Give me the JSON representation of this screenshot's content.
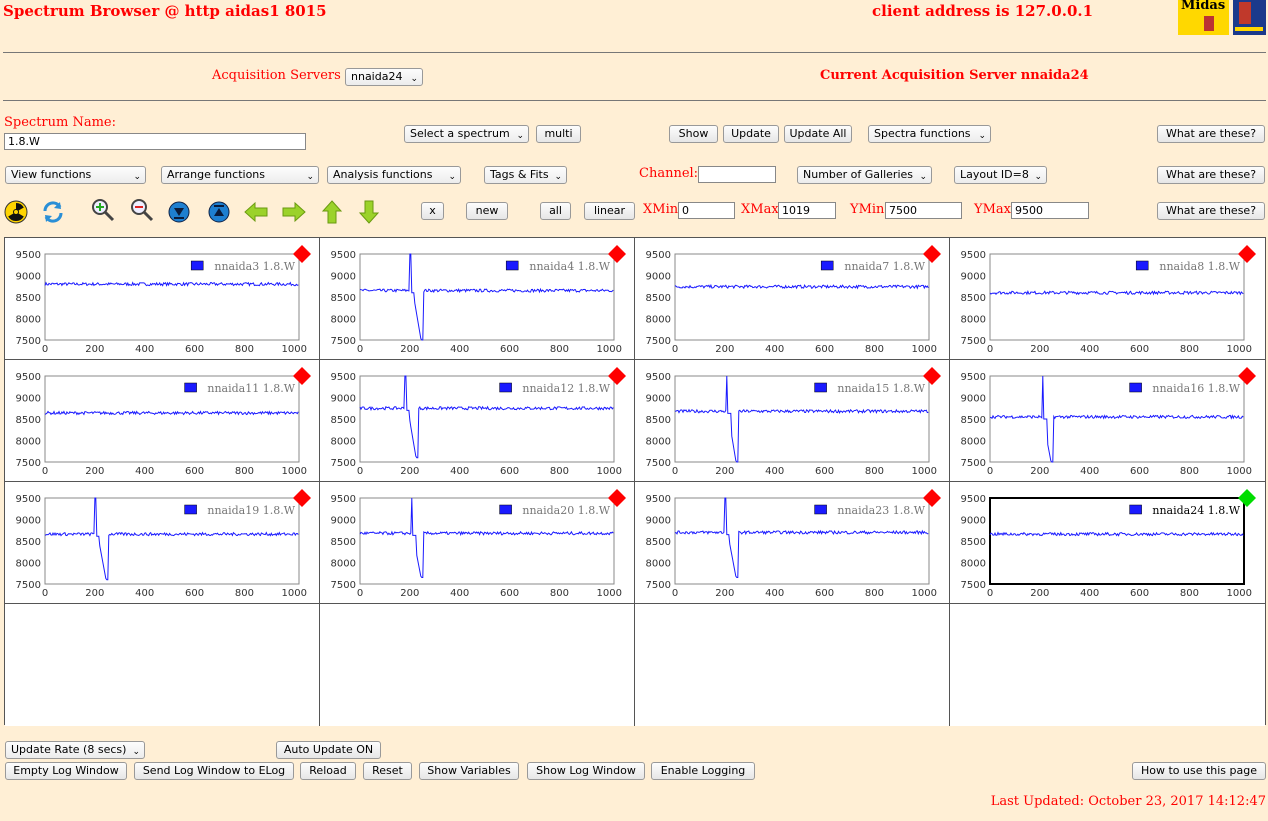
{
  "header": {
    "title": "Spectrum Browser @ http aidas1 8015",
    "client_address": "client address is 127.0.0.1",
    "logo_text": "Midas"
  },
  "servers": {
    "label": "Acquisition Servers",
    "selected": "nnaida24",
    "current": "Current Acquisition Server nnaida24"
  },
  "toolbar1": {
    "spectrum_name_label": "Spectrum Name:",
    "spectrum_name_value": "1.8.W",
    "select_spectrum": "Select a spectrum",
    "multi": "multi",
    "show": "Show",
    "update": "Update",
    "update_all": "Update All",
    "spectra_functions": "Spectra functions",
    "what": "What are these?"
  },
  "toolbar2": {
    "view_functions": "View functions",
    "arrange_functions": "Arrange functions",
    "analysis_functions": "Analysis functions",
    "tags_fits": "Tags & Fits",
    "channel_label": "Channel:",
    "channel_value": "",
    "galleries": "Number of Galleries",
    "layout": "Layout ID=8",
    "what": "What are these?"
  },
  "toolbar3": {
    "x": "x",
    "new": "new",
    "all": "all",
    "linear": "linear",
    "xmin_label": "XMin",
    "xmin_value": "0",
    "xmax_label": "XMax",
    "xmax_value": "1019",
    "ymin_label": "YMin",
    "ymin_value": "7500",
    "ymax_label": "YMax",
    "ymax_value": "9500",
    "what": "What are these?",
    "icons": [
      "radiation-icon",
      "refresh-icon",
      "zoom-in-icon",
      "zoom-out-icon",
      "expand-down-icon",
      "expand-up-icon",
      "arrow-left-icon",
      "arrow-right-icon",
      "arrow-up-icon",
      "arrow-down-icon"
    ]
  },
  "bottom": {
    "update_rate": "Update Rate (8 secs)",
    "auto_update": "Auto Update ON",
    "empty_log": "Empty Log Window",
    "send_log": "Send Log Window to ELog",
    "reload": "Reload",
    "reset": "Reset",
    "show_variables": "Show Variables",
    "show_log": "Show Log Window",
    "enable_logging": "Enable Logging",
    "how_to": "How to use this page",
    "last_updated": "Last Updated: October 23, 2017 14:12:47"
  },
  "colors": {
    "accent": "#ff0000",
    "series": "#1a1aff",
    "marker_inactive": "#ff0000",
    "marker_active": "#00dd00",
    "background": "#ffefd5"
  },
  "chart_data": [
    {
      "type": "line",
      "series": [
        {
          "name": "nnaida3 1.8.W",
          "baseline": 8800
        }
      ],
      "xlim": [
        0,
        1019
      ],
      "ylim": [
        7500,
        9500
      ],
      "x_ticks": [
        0,
        200,
        400,
        600,
        800,
        1000
      ],
      "y_ticks": [
        9500,
        9000,
        8500,
        8000,
        7500
      ],
      "active": false
    },
    {
      "type": "line",
      "series": [
        {
          "name": "nnaida4 1.8.W",
          "baseline": 8650,
          "spike_at": 200,
          "dip_to": 7500,
          "dip_at": 245
        }
      ],
      "xlim": [
        0,
        1019
      ],
      "ylim": [
        7500,
        9500
      ],
      "x_ticks": [
        0,
        200,
        400,
        600,
        800,
        1000
      ],
      "y_ticks": [
        9500,
        9000,
        8500,
        8000,
        7500
      ],
      "active": false
    },
    {
      "type": "line",
      "series": [
        {
          "name": "nnaida7 1.8.W",
          "baseline": 8740
        }
      ],
      "xlim": [
        0,
        1019
      ],
      "ylim": [
        7500,
        9500
      ],
      "x_ticks": [
        0,
        200,
        400,
        600,
        800,
        1000
      ],
      "y_ticks": [
        9500,
        9000,
        8500,
        8000,
        7500
      ],
      "active": false
    },
    {
      "type": "line",
      "series": [
        {
          "name": "nnaida8 1.8.W",
          "baseline": 8600
        }
      ],
      "xlim": [
        0,
        1019
      ],
      "ylim": [
        7500,
        9500
      ],
      "x_ticks": [
        0,
        200,
        400,
        600,
        800,
        1000
      ],
      "y_ticks": [
        9500,
        9000,
        8500,
        8000,
        7500
      ],
      "active": false
    },
    {
      "type": "line",
      "series": [
        {
          "name": "nnaida11 1.8.W",
          "baseline": 8640
        }
      ],
      "xlim": [
        0,
        1019
      ],
      "ylim": [
        7500,
        9500
      ],
      "x_ticks": [
        0,
        200,
        400,
        600,
        800,
        1000
      ],
      "y_ticks": [
        9500,
        9000,
        8500,
        8000,
        7500
      ],
      "active": false
    },
    {
      "type": "line",
      "series": [
        {
          "name": "nnaida12 1.8.W",
          "baseline": 8750,
          "spike_at": 180,
          "dip_to": 7600,
          "dip_at": 225
        }
      ],
      "xlim": [
        0,
        1019
      ],
      "ylim": [
        7500,
        9500
      ],
      "x_ticks": [
        0,
        200,
        400,
        600,
        800,
        1000
      ],
      "y_ticks": [
        9500,
        9000,
        8500,
        8000,
        7500
      ],
      "active": false
    },
    {
      "type": "line",
      "series": [
        {
          "name": "nnaida15 1.8.W",
          "baseline": 8680,
          "spike_at": 205,
          "dip_to": 7500,
          "dip_at": 245
        }
      ],
      "xlim": [
        0,
        1019
      ],
      "ylim": [
        7500,
        9500
      ],
      "x_ticks": [
        0,
        200,
        400,
        600,
        800,
        1000
      ],
      "y_ticks": [
        9500,
        9000,
        8500,
        8000,
        7500
      ],
      "active": false
    },
    {
      "type": "line",
      "series": [
        {
          "name": "nnaida16 1.8.W",
          "baseline": 8550,
          "spike_at": 210,
          "dip_to": 7500,
          "dip_at": 245
        }
      ],
      "xlim": [
        0,
        1019
      ],
      "ylim": [
        7500,
        9500
      ],
      "x_ticks": [
        0,
        200,
        400,
        600,
        800,
        1000
      ],
      "y_ticks": [
        9500,
        9000,
        8500,
        8000,
        7500
      ],
      "active": false
    },
    {
      "type": "line",
      "series": [
        {
          "name": "nnaida19 1.8.W",
          "baseline": 8660,
          "spike_at": 200,
          "dip_to": 7600,
          "dip_at": 245
        }
      ],
      "xlim": [
        0,
        1019
      ],
      "ylim": [
        7500,
        9500
      ],
      "x_ticks": [
        0,
        200,
        400,
        600,
        800,
        1000
      ],
      "y_ticks": [
        9500,
        9000,
        8500,
        8000,
        7500
      ],
      "active": false
    },
    {
      "type": "line",
      "series": [
        {
          "name": "nnaida20 1.8.W",
          "baseline": 8680,
          "spike_at": 205,
          "dip_to": 7650,
          "dip_at": 245
        }
      ],
      "xlim": [
        0,
        1019
      ],
      "ylim": [
        7500,
        9500
      ],
      "x_ticks": [
        0,
        200,
        400,
        600,
        800,
        1000
      ],
      "y_ticks": [
        9500,
        9000,
        8500,
        8000,
        7500
      ],
      "active": false
    },
    {
      "type": "line",
      "series": [
        {
          "name": "nnaida23 1.8.W",
          "baseline": 8700,
          "spike_at": 200,
          "dip_to": 7650,
          "dip_at": 245
        }
      ],
      "xlim": [
        0,
        1019
      ],
      "ylim": [
        7500,
        9500
      ],
      "x_ticks": [
        0,
        200,
        400,
        600,
        800,
        1000
      ],
      "y_ticks": [
        9500,
        9000,
        8500,
        8000,
        7500
      ],
      "active": false
    },
    {
      "type": "line",
      "series": [
        {
          "name": "nnaida24 1.8.W",
          "baseline": 8660
        }
      ],
      "xlim": [
        0,
        1019
      ],
      "ylim": [
        7500,
        9500
      ],
      "x_ticks": [
        0,
        200,
        400,
        600,
        800,
        1000
      ],
      "y_ticks": [
        9500,
        9000,
        8500,
        8000,
        7500
      ],
      "active": true
    }
  ]
}
